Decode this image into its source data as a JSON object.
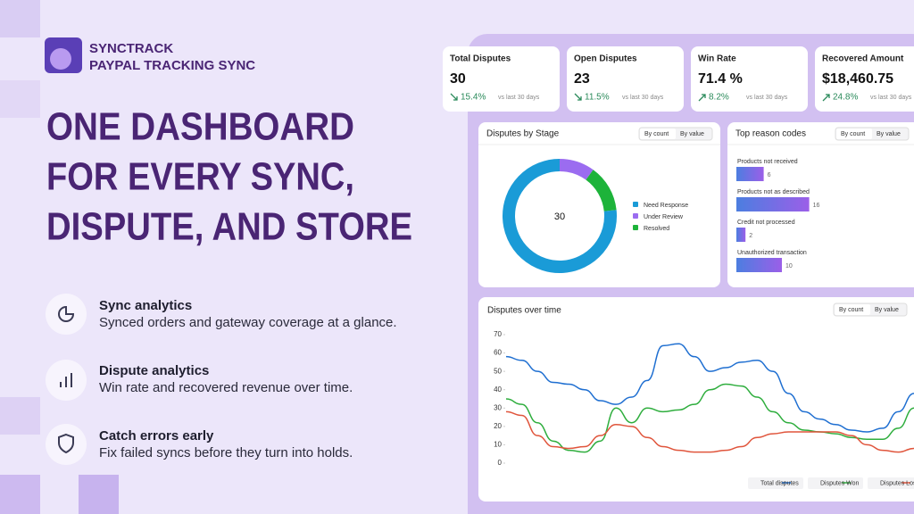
{
  "brand": {
    "name": "SYNCTRACK",
    "tagline": "PAYPAL TRACKING SYNC"
  },
  "headline": [
    "ONE DASHBOARD",
    "FOR EVERY SYNC,",
    "DISPUTE, AND STORE"
  ],
  "features": [
    {
      "title": "Sync analytics",
      "text": "Synced orders and gateway coverage at a glance."
    },
    {
      "title": "Dispute analytics",
      "text": "Win rate and recovered revenue over time."
    },
    {
      "title": "Catch errors early",
      "text": "Fix failed syncs before they turn into holds."
    }
  ],
  "kpis": [
    {
      "label": "Total Disputes",
      "value": "30",
      "change": "15.4%",
      "note": "vs last 30 days",
      "direction": "down"
    },
    {
      "label": "Open Disputes",
      "value": "23",
      "change": "11.5%",
      "note": "vs last 30 days",
      "direction": "down"
    },
    {
      "label": "Win Rate",
      "value": "71.4 %",
      "change": "8.2%",
      "note": "vs last 30 days",
      "direction": "up"
    },
    {
      "label": "Recovered Amount",
      "value": "$18,460.75",
      "change": "24.8%",
      "note": "vs last 30 days",
      "direction": "up"
    }
  ],
  "stage_chart": {
    "type": "pie",
    "title": "Disputes by Stage",
    "toggle": [
      "By count",
      "By value"
    ],
    "center_label": "30",
    "categories": [
      "Need Response",
      "Under Review",
      "Resolved"
    ],
    "values": [
      23,
      3,
      4
    ],
    "colors": [
      "#1a9bd7",
      "#9b6cf0",
      "#1db33a"
    ]
  },
  "reason_chart": {
    "type": "bar",
    "title": "Top reason codes",
    "toggle": [
      "By count",
      "By value"
    ],
    "categories": [
      "Products not received",
      "Products not as described",
      "Credit not processed",
      "Unauthorized transaction"
    ],
    "values": [
      6,
      16,
      2,
      10
    ]
  },
  "time_chart": {
    "type": "line",
    "title": "Disputes over time",
    "toggle": [
      "By count",
      "By value"
    ],
    "ylim": [
      0,
      70
    ],
    "yticks": [
      0,
      10,
      20,
      30,
      40,
      50,
      60,
      70
    ],
    "series": [
      {
        "name": "Total disputes",
        "color": "#1f6fd1",
        "values": [
          58,
          56,
          50,
          44,
          43,
          40,
          34,
          32,
          36,
          45,
          64,
          65,
          58,
          50,
          52,
          55,
          56,
          50,
          38,
          28,
          24,
          21,
          18,
          17,
          19,
          28,
          38
        ]
      },
      {
        "name": "Disputes Won",
        "color": "#2fae3e",
        "values": [
          35,
          32,
          22,
          12,
          7,
          6,
          12,
          30,
          22,
          30,
          28,
          29,
          32,
          40,
          43,
          42,
          36,
          28,
          22,
          18,
          17,
          16,
          14,
          13,
          13,
          19,
          30
        ]
      },
      {
        "name": "Disputes Lost",
        "color": "#e0553c",
        "values": [
          28,
          26,
          15,
          9,
          8,
          9,
          15,
          21,
          20,
          14,
          9,
          7,
          6,
          6,
          7,
          9,
          14,
          16,
          17,
          17,
          17,
          17,
          15,
          10,
          7,
          6,
          8
        ]
      }
    ]
  }
}
